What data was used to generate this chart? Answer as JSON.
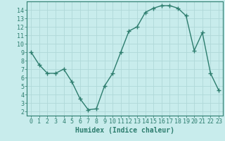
{
  "xlabel": "Humidex (Indice chaleur)",
  "ylabel": "",
  "x": [
    0,
    1,
    2,
    3,
    4,
    5,
    6,
    7,
    8,
    9,
    10,
    11,
    12,
    13,
    14,
    15,
    16,
    17,
    18,
    19,
    20,
    21,
    22,
    23
  ],
  "y": [
    9,
    7.5,
    6.5,
    6.5,
    7,
    5.5,
    3.5,
    2.2,
    2.3,
    5,
    6.5,
    9,
    11.5,
    12,
    13.7,
    14.2,
    14.5,
    14.5,
    14.2,
    13.3,
    9.2,
    11.3,
    6.5,
    4.5
  ],
  "line_color": "#2d7d6e",
  "marker": "+",
  "marker_size": 4,
  "background_color": "#c8ecec",
  "grid_color": "#b0d8d8",
  "tick_color": "#2d7d6e",
  "xlim": [
    -0.5,
    23.5
  ],
  "ylim": [
    1.5,
    15.0
  ],
  "yticks": [
    2,
    3,
    4,
    5,
    6,
    7,
    8,
    9,
    10,
    11,
    12,
    13,
    14
  ],
  "xticks": [
    0,
    1,
    2,
    3,
    4,
    5,
    6,
    7,
    8,
    9,
    10,
    11,
    12,
    13,
    14,
    15,
    16,
    17,
    18,
    19,
    20,
    21,
    22,
    23
  ],
  "xlabel_fontsize": 7,
  "tick_fontsize": 6,
  "line_width": 1.0
}
